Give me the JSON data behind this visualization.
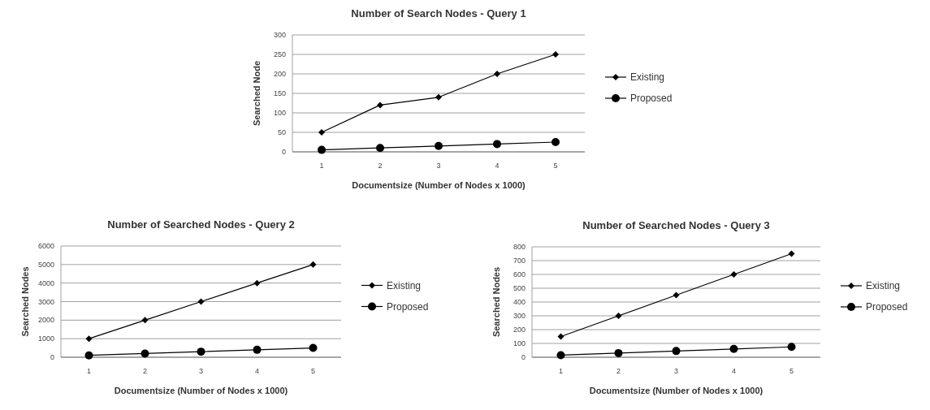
{
  "chart_data": [
    {
      "type": "line",
      "title": "Number of Search Nodes - Query 1",
      "xlabel": "Documentsize (Number of Nodes x 1000)",
      "ylabel": "Searched Node",
      "categories": [
        "1",
        "2",
        "3",
        "4",
        "5"
      ],
      "series": [
        {
          "name": "Existing",
          "color": "#000000",
          "marker": "diamond",
          "values": [
            50,
            120,
            140,
            200,
            250
          ]
        },
        {
          "name": "Proposed",
          "color": "#000000",
          "marker": "circle",
          "values": [
            5,
            10,
            15,
            20,
            25
          ]
        }
      ],
      "ylim": [
        0,
        300
      ],
      "yticks": [
        0,
        50,
        100,
        150,
        200,
        250,
        300
      ],
      "grid": "y",
      "legend": "right",
      "line_style": "solid"
    },
    {
      "type": "line",
      "title": "Number of Searched Nodes - Query 2",
      "xlabel": "Documentsize (Number of Nodes x 1000)",
      "ylabel": "Searched Nodes",
      "categories": [
        "1",
        "2",
        "3",
        "4",
        "5"
      ],
      "series": [
        {
          "name": "Existing",
          "color": "#000000",
          "marker": "diamond",
          "values": [
            1000,
            2000,
            3000,
            4000,
            5000
          ]
        },
        {
          "name": "Proposed",
          "color": "#000000",
          "marker": "circle",
          "values": [
            100,
            200,
            300,
            400,
            500
          ]
        }
      ],
      "ylim": [
        0,
        6000
      ],
      "yticks": [
        0,
        1000,
        2000,
        3000,
        4000,
        5000,
        6000
      ],
      "grid": "y",
      "legend": "right",
      "line_style": "solid"
    },
    {
      "type": "line",
      "title": "Number of Searched Nodes - Query 3",
      "xlabel": "Documentsize (Number of Nodes x 1000)",
      "ylabel": "Searched Nodes",
      "categories": [
        "1",
        "2",
        "3",
        "4",
        "5"
      ],
      "series": [
        {
          "name": "Existing",
          "color": "#000000",
          "marker": "diamond",
          "values": [
            150,
            300,
            450,
            600,
            750
          ]
        },
        {
          "name": "Proposed",
          "color": "#000000",
          "marker": "circle",
          "values": [
            15,
            30,
            45,
            60,
            75
          ]
        }
      ],
      "ylim": [
        0,
        800
      ],
      "yticks": [
        0,
        100,
        200,
        300,
        400,
        500,
        600,
        700,
        800
      ],
      "grid": "y",
      "legend": "right",
      "line_style": "solid"
    }
  ]
}
